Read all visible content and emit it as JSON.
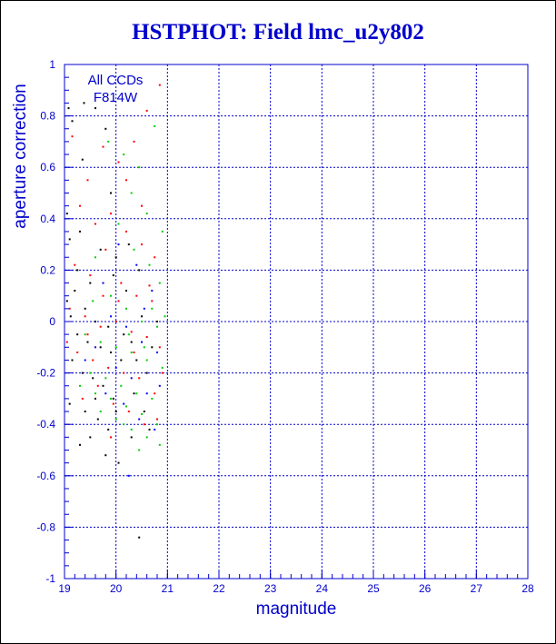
{
  "title": "HSTPHOT: Field lmc_u2y802",
  "chart_data": {
    "type": "scatter",
    "xlabel": "magnitude",
    "ylabel": "aperture correction",
    "xlim": [
      19,
      28
    ],
    "ylim": [
      -1,
      1
    ],
    "x_ticks": [
      "19",
      "20",
      "21",
      "22",
      "23",
      "24",
      "25",
      "26",
      "27",
      "28"
    ],
    "y_ticks": [
      "1",
      "0.8",
      "0.6",
      "0.4",
      "0.2",
      "0",
      "-0.2",
      "-0.4",
      "-0.6",
      "-0.8",
      "-1"
    ],
    "legend": [
      "All CCDs",
      "F814W"
    ],
    "legend_position": "top-left",
    "grid": "dashed",
    "colors": {
      "axis": "#0000cc",
      "grid": "#0000cc"
    },
    "series": [
      {
        "color": "#000000",
        "points": [
          [
            19.08,
            0.83
          ],
          [
            19.15,
            0.78
          ],
          [
            19.38,
            0.85
          ],
          [
            19.6,
            0.83
          ],
          [
            19.8,
            0.75
          ],
          [
            19.35,
            0.63
          ],
          [
            19.9,
            0.5
          ],
          [
            19.05,
            0.42
          ],
          [
            19.3,
            0.35
          ],
          [
            19.1,
            0.32
          ],
          [
            19.7,
            0.28
          ],
          [
            20.0,
            0.25
          ],
          [
            19.5,
            0.15
          ],
          [
            19.2,
            0.12
          ],
          [
            19.05,
            0.08
          ],
          [
            19.4,
            0.05
          ],
          [
            19.12,
            0.02
          ],
          [
            19.6,
            0.0
          ],
          [
            19.85,
            -0.02
          ],
          [
            19.25,
            -0.05
          ],
          [
            19.45,
            -0.08
          ],
          [
            19.7,
            -0.1
          ],
          [
            19.9,
            -0.12
          ],
          [
            19.15,
            -0.15
          ],
          [
            19.35,
            -0.2
          ],
          [
            19.55,
            -0.22
          ],
          [
            19.75,
            -0.25
          ],
          [
            19.95,
            -0.3
          ],
          [
            19.1,
            -0.32
          ],
          [
            19.4,
            -0.35
          ],
          [
            19.65,
            -0.38
          ],
          [
            19.85,
            -0.42
          ],
          [
            19.5,
            -0.45
          ],
          [
            19.3,
            -0.48
          ],
          [
            19.8,
            -0.52
          ],
          [
            20.05,
            -0.55
          ],
          [
            20.1,
            -0.15
          ],
          [
            20.3,
            -0.08
          ],
          [
            20.5,
            0.02
          ],
          [
            20.2,
            0.12
          ],
          [
            20.45,
            0.2
          ],
          [
            20.6,
            -0.2
          ],
          [
            20.35,
            -0.28
          ],
          [
            20.7,
            -0.1
          ],
          [
            20.55,
            -0.35
          ],
          [
            20.45,
            -0.84
          ],
          [
            20.8,
            0.0
          ],
          [
            20.25,
            0.3
          ],
          [
            19.95,
            0.18
          ],
          [
            19.6,
            -0.3
          ],
          [
            20.15,
            -0.05
          ],
          [
            20.4,
            -0.15
          ],
          [
            20.65,
            -0.42
          ],
          [
            19.25,
            0.2
          ],
          [
            20.0,
            -0.35
          ],
          [
            20.3,
            -0.45
          ]
        ]
      },
      {
        "color": "#ff0000",
        "points": [
          [
            19.15,
            0.72
          ],
          [
            19.45,
            0.55
          ],
          [
            19.75,
            0.68
          ],
          [
            20.05,
            0.62
          ],
          [
            20.35,
            0.7
          ],
          [
            20.6,
            0.82
          ],
          [
            20.85,
            0.92
          ],
          [
            19.3,
            0.45
          ],
          [
            19.6,
            0.38
          ],
          [
            19.9,
            0.42
          ],
          [
            20.2,
            0.35
          ],
          [
            20.5,
            0.3
          ],
          [
            20.75,
            0.25
          ],
          [
            19.2,
            0.22
          ],
          [
            19.5,
            0.18
          ],
          [
            19.8,
            0.28
          ],
          [
            20.1,
            0.15
          ],
          [
            20.4,
            0.1
          ],
          [
            20.7,
            0.08
          ],
          [
            19.1,
            0.05
          ],
          [
            19.4,
            0.02
          ],
          [
            19.7,
            -0.02
          ],
          [
            20.0,
            0.0
          ],
          [
            20.3,
            -0.04
          ],
          [
            20.6,
            -0.06
          ],
          [
            20.85,
            -0.1
          ],
          [
            19.25,
            -0.12
          ],
          [
            19.55,
            -0.15
          ],
          [
            19.85,
            -0.18
          ],
          [
            20.15,
            -0.2
          ],
          [
            20.45,
            -0.22
          ],
          [
            20.75,
            -0.28
          ],
          [
            19.35,
            -0.3
          ],
          [
            19.65,
            -0.25
          ],
          [
            19.95,
            -0.32
          ],
          [
            20.25,
            -0.35
          ],
          [
            20.55,
            -0.4
          ],
          [
            20.8,
            -0.38
          ],
          [
            19.45,
            -0.05
          ],
          [
            20.05,
            0.08
          ],
          [
            20.65,
            0.14
          ],
          [
            19.75,
            0.1
          ],
          [
            20.35,
            -0.12
          ],
          [
            20.9,
            -0.2
          ],
          [
            19.05,
            -0.08
          ],
          [
            20.5,
            0.45
          ],
          [
            20.2,
            0.55
          ],
          [
            19.9,
            -0.45
          ]
        ]
      },
      {
        "color": "#00cc00",
        "points": [
          [
            19.85,
            0.7
          ],
          [
            20.15,
            0.65
          ],
          [
            20.45,
            0.6
          ],
          [
            20.75,
            0.76
          ],
          [
            20.3,
            0.5
          ],
          [
            20.6,
            0.42
          ],
          [
            20.9,
            0.35
          ],
          [
            20.05,
            0.38
          ],
          [
            20.35,
            0.28
          ],
          [
            20.65,
            0.22
          ],
          [
            20.85,
            0.15
          ],
          [
            19.6,
            0.25
          ],
          [
            19.9,
            0.1
          ],
          [
            20.2,
            0.05
          ],
          [
            20.5,
            0.0
          ],
          [
            20.8,
            -0.02
          ],
          [
            19.4,
            -0.05
          ],
          [
            19.7,
            -0.08
          ],
          [
            20.0,
            -0.1
          ],
          [
            20.3,
            -0.12
          ],
          [
            20.6,
            -0.15
          ],
          [
            20.9,
            -0.18
          ],
          [
            19.5,
            -0.2
          ],
          [
            19.8,
            -0.22
          ],
          [
            20.1,
            -0.25
          ],
          [
            20.4,
            -0.28
          ],
          [
            20.7,
            -0.3
          ],
          [
            19.3,
            -0.25
          ],
          [
            19.6,
            -0.28
          ],
          [
            19.9,
            -0.3
          ],
          [
            20.2,
            -0.33
          ],
          [
            20.5,
            -0.36
          ],
          [
            20.8,
            -0.4
          ],
          [
            19.7,
            -0.35
          ],
          [
            20.0,
            -0.38
          ],
          [
            20.3,
            -0.42
          ],
          [
            20.6,
            -0.45
          ],
          [
            20.85,
            -0.48
          ],
          [
            20.45,
            -0.5
          ],
          [
            20.7,
            0.05
          ],
          [
            20.25,
            -0.05
          ],
          [
            19.55,
            0.08
          ],
          [
            20.95,
            0.02
          ],
          [
            20.15,
            -0.4
          ],
          [
            20.55,
            -0.1
          ]
        ]
      },
      {
        "color": "#0000ff",
        "points": [
          [
            20.05,
            0.3
          ],
          [
            20.4,
            0.22
          ],
          [
            20.7,
            0.12
          ],
          [
            19.9,
            0.02
          ],
          [
            20.2,
            -0.02
          ],
          [
            20.5,
            -0.08
          ],
          [
            20.8,
            -0.12
          ],
          [
            19.6,
            -0.1
          ],
          [
            20.0,
            -0.18
          ],
          [
            20.3,
            -0.22
          ],
          [
            20.6,
            -0.28
          ],
          [
            20.85,
            -0.25
          ],
          [
            19.4,
            -0.15
          ],
          [
            19.8,
            -0.28
          ],
          [
            20.15,
            -0.32
          ],
          [
            20.45,
            -0.38
          ],
          [
            20.75,
            -0.42
          ],
          [
            20.25,
            -0.6
          ],
          [
            19.75,
            0.15
          ],
          [
            20.55,
            0.05
          ]
        ]
      }
    ]
  }
}
